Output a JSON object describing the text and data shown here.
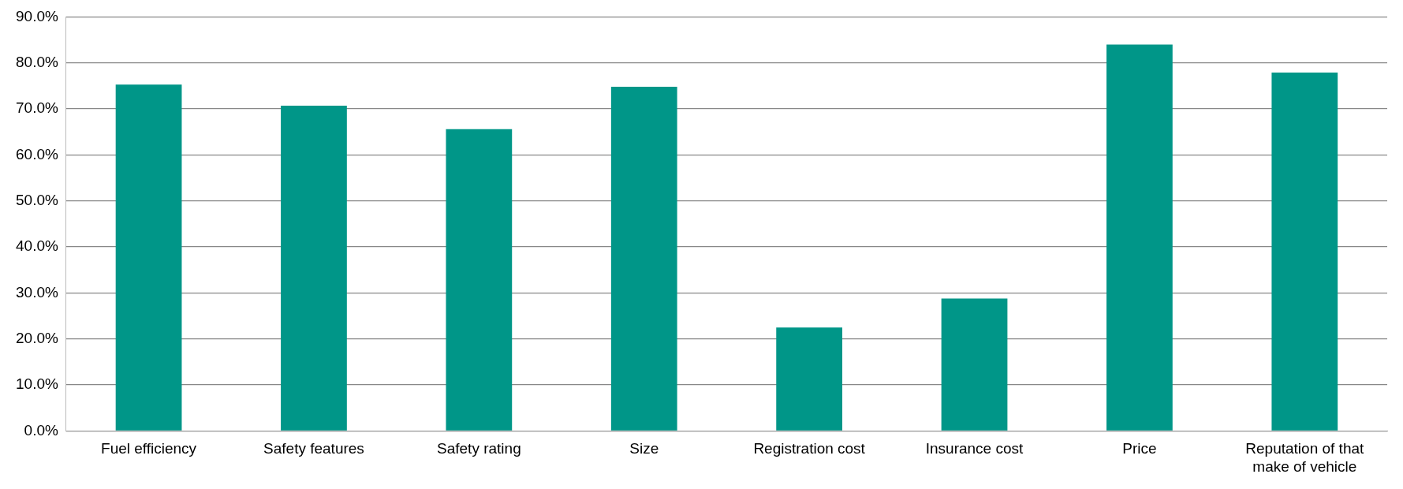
{
  "chart_data": {
    "type": "bar",
    "categories": [
      "Fuel efficiency",
      "Safety features",
      "Safety rating",
      "Size",
      "Registration cost",
      "Insurance cost",
      "Price",
      "Reputation of that make of vehicle"
    ],
    "values": [
      75.3,
      70.7,
      65.6,
      74.8,
      22.5,
      28.8,
      84.0,
      77.9
    ],
    "color": "#009688",
    "ylim": [
      0,
      90
    ],
    "yticks": [
      {
        "value": 0,
        "label": "0.0%"
      },
      {
        "value": 10,
        "label": "10.0%"
      },
      {
        "value": 20,
        "label": "20.0%"
      },
      {
        "value": 30,
        "label": "30.0%"
      },
      {
        "value": 40,
        "label": "40.0%"
      },
      {
        "value": 50,
        "label": "50.0%"
      },
      {
        "value": 60,
        "label": "60.0%"
      },
      {
        "value": 70,
        "label": "70.0%"
      },
      {
        "value": 80,
        "label": "80.0%"
      },
      {
        "value": 90,
        "label": "90.0%"
      }
    ],
    "grid": "y"
  }
}
